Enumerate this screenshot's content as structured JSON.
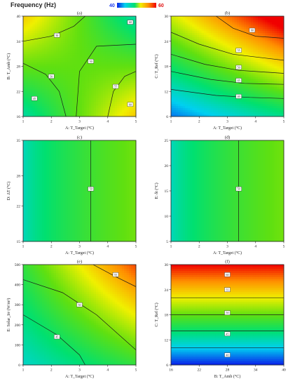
{
  "header": {
    "title": "Frequency (Hz)",
    "scale_min": "40",
    "scale_max": "60",
    "scale_min_color": "#1f3df0",
    "scale_max_color": "#e01010"
  },
  "colormap": [
    "#0a1fe8",
    "#00d0f0",
    "#00e070",
    "#60e010",
    "#f0f000",
    "#ff9000",
    "#f00000"
  ],
  "chart_data": [
    {
      "type": "heatmap",
      "panel_label": "(a)",
      "xlabel": "A: T_Target (°C)",
      "ylabel": "B: T_Amb (°C)",
      "xlim": [
        1,
        5
      ],
      "ylim": [
        16,
        40
      ],
      "xticks": [
        "1",
        "2",
        "3",
        "4",
        "5"
      ],
      "yticks": [
        "16",
        "22",
        "28",
        "34",
        "40"
      ],
      "contour_labels": [
        "45",
        "50",
        "50",
        "50",
        "55",
        "45",
        "60",
        "60"
      ]
    },
    {
      "type": "heatmap",
      "panel_label": "(b)",
      "xlabel": "A: T_Target (°C)",
      "ylabel": "C: T_Ref (°C)",
      "xlim": [
        1,
        5
      ],
      "ylim": [
        6,
        30
      ],
      "xticks": [
        "1",
        "2",
        "3",
        "4",
        "5"
      ],
      "yticks": [
        "6",
        "12",
        "18",
        "24",
        "30"
      ],
      "contour_labels": [
        "60",
        "55",
        "50",
        "45",
        "40"
      ]
    },
    {
      "type": "heatmap",
      "panel_label": "(c)",
      "xlabel": "A: T_Target (°C)",
      "ylabel": "D: ΔT (°C)",
      "xlim": [
        1,
        5
      ],
      "ylim": [
        15,
        35
      ],
      "xticks": [
        "1",
        "2",
        "3",
        "4",
        "5"
      ],
      "yticks": [
        "15",
        "22",
        "28",
        "35"
      ],
      "contour_labels": [
        "50"
      ]
    },
    {
      "type": "heatmap",
      "panel_label": "(d)",
      "xlabel": "A: T_Target (°C)",
      "ylabel": "E: δt (°C)",
      "xlim": [
        1,
        5
      ],
      "ylim": [
        5,
        25
      ],
      "xticks": [
        "1",
        "2",
        "3",
        "4",
        "5"
      ],
      "yticks": [
        "5",
        "10",
        "15",
        "20",
        "25"
      ],
      "contour_labels": [
        "50"
      ]
    },
    {
      "type": "heatmap",
      "panel_label": "(e)",
      "xlabel": "A: T_Target (°C)",
      "ylabel": "E: Solar_Irr (W/m²)",
      "xlim": [
        1,
        5
      ],
      "ylim": [
        0,
        500
      ],
      "xticks": [
        "1",
        "2",
        "3",
        "4",
        "5"
      ],
      "yticks": [
        "0",
        "100",
        "200",
        "300",
        "400",
        "500"
      ],
      "contour_labels": [
        "55",
        "50",
        "45"
      ]
    },
    {
      "type": "heatmap",
      "panel_label": "(f)",
      "xlabel": "B: T_Amb (°C)",
      "ylabel": "C: T_Ref (°C)",
      "xlim": [
        16,
        40
      ],
      "ylim": [
        6,
        30
      ],
      "xticks": [
        "16",
        "22",
        "28",
        "34",
        "40"
      ],
      "yticks": [
        "6",
        "12",
        "18",
        "24",
        "30"
      ],
      "contour_labels": [
        "60",
        "55",
        "50",
        "45",
        "40"
      ]
    }
  ]
}
